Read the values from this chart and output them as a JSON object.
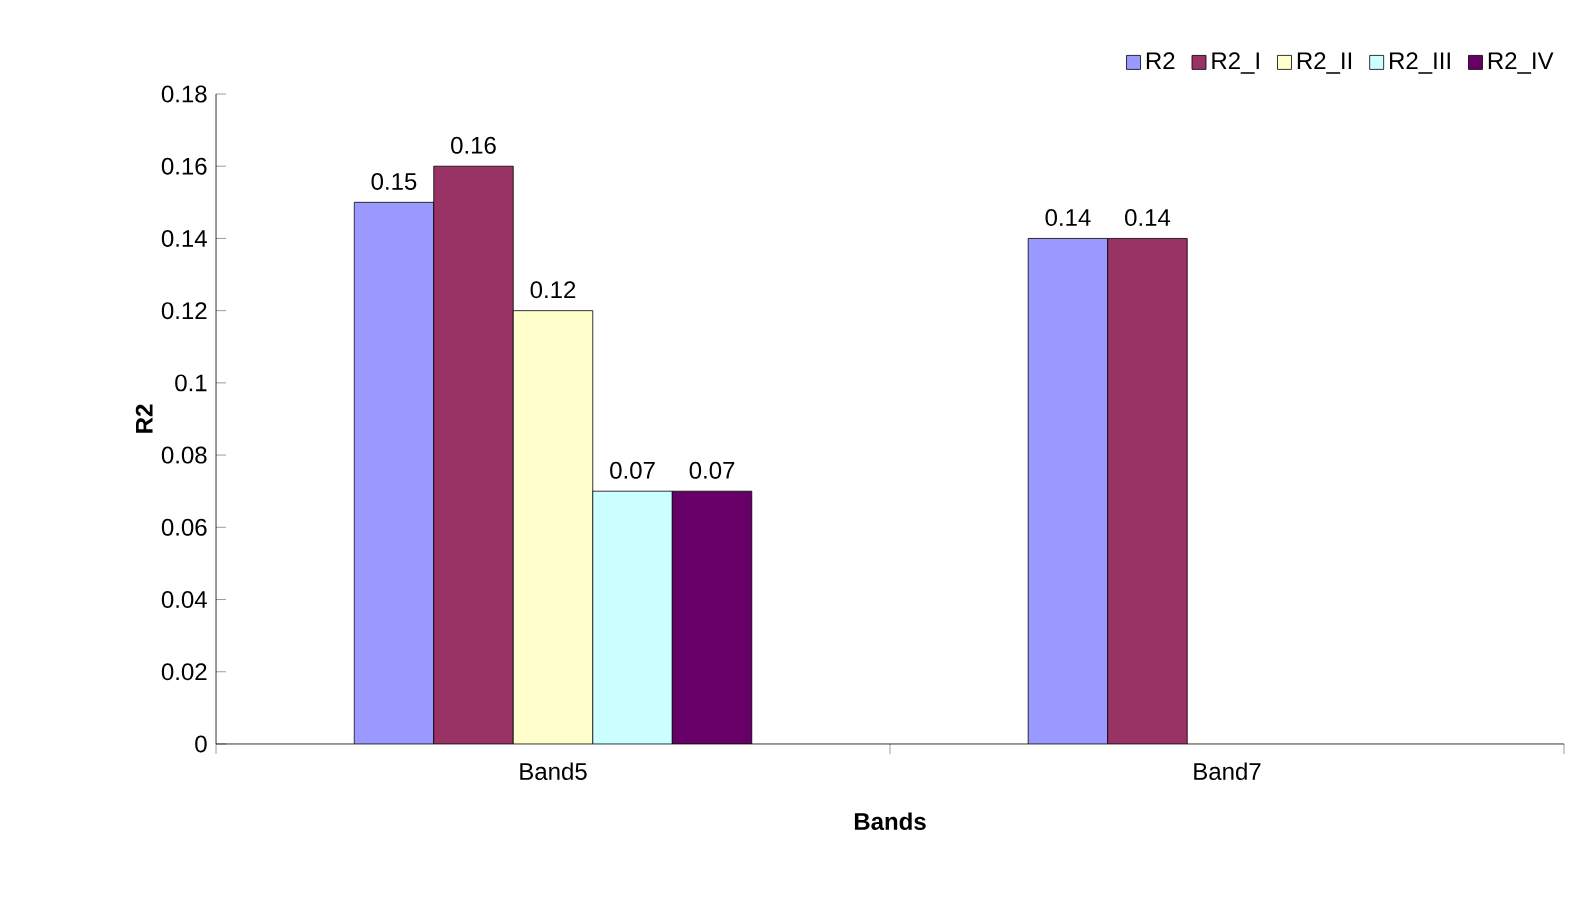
{
  "chart_data": {
    "type": "bar",
    "xlabel": "Bands",
    "ylabel": "R2",
    "categories": [
      "Band5",
      "Band7"
    ],
    "series": [
      {
        "name": "R2",
        "color": "#9999ff",
        "values": [
          0.15,
          0.14
        ]
      },
      {
        "name": "R2_I",
        "color": "#993366",
        "values": [
          0.16,
          0.14
        ]
      },
      {
        "name": "R2_II",
        "color": "#ffffcc",
        "values": [
          0.12,
          null
        ]
      },
      {
        "name": "R2_III",
        "color": "#ccffff",
        "values": [
          0.07,
          null
        ]
      },
      {
        "name": "R2_IV",
        "color": "#660066",
        "values": [
          0.07,
          null
        ]
      }
    ],
    "ylim": [
      0,
      0.18
    ],
    "yticks": [
      0,
      0.02,
      0.04,
      0.06,
      0.08,
      0.1,
      0.12,
      0.14,
      0.16,
      0.18
    ],
    "grid": false,
    "legend": "top right",
    "data_labels": true
  }
}
